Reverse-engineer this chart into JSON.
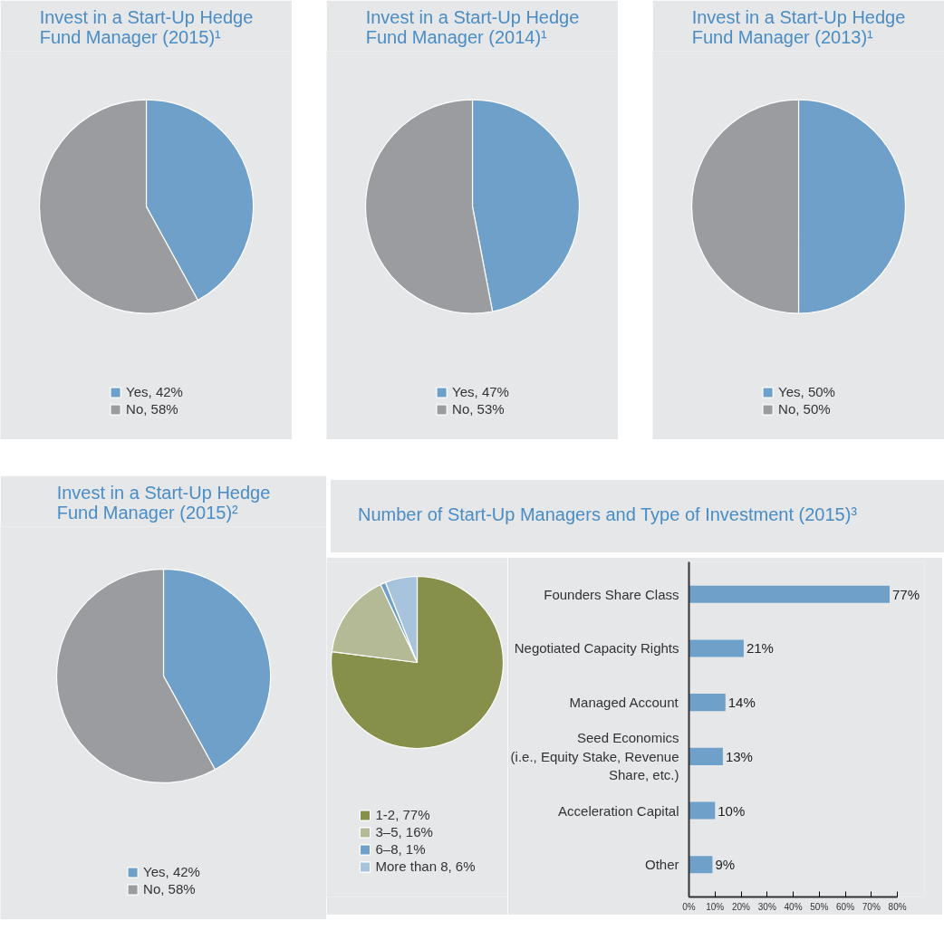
{
  "chart_data": [
    {
      "type": "pie",
      "title": "Invest in a Start-Up Hedge Fund Manager (2015)¹",
      "categories": [
        "Yes, 42%",
        "No, 58%"
      ],
      "values": [
        42,
        58
      ],
      "colors": [
        "#6fa0c9",
        "#9b9ca0"
      ],
      "legend": "bottom"
    },
    {
      "type": "pie",
      "title": "Invest in a Start-Up Hedge Fund Manager (2014)¹",
      "categories": [
        "Yes, 47%",
        "No, 53%"
      ],
      "values": [
        47,
        53
      ],
      "colors": [
        "#6fa0c9",
        "#9b9ca0"
      ],
      "legend": "bottom"
    },
    {
      "type": "pie",
      "title": "Invest in a Start-Up Hedge Fund Manager (2013)¹",
      "categories": [
        "Yes, 50%",
        "No, 50%"
      ],
      "values": [
        50,
        50
      ],
      "colors": [
        "#6fa0c9",
        "#9b9ca0"
      ],
      "legend": "bottom"
    },
    {
      "type": "pie",
      "title": "Invest in a Start-Up Hedge Fund Manager (2015)²",
      "categories": [
        "Yes, 42%",
        "No, 58%"
      ],
      "values": [
        42,
        58
      ],
      "colors": [
        "#6fa0c9",
        "#9b9ca0"
      ],
      "legend": "bottom"
    },
    {
      "type": "pie",
      "categories": [
        "1-2, 77%",
        "3–5, 16%",
        "6–8, 1%",
        "More than 8, 6%"
      ],
      "values": [
        77,
        16,
        1,
        6
      ],
      "colors": [
        "#87904a",
        "#b3ba95",
        "#6fa0c9",
        "#a7c4dc"
      ],
      "legend": "bottom"
    },
    {
      "type": "bar",
      "orientation": "horizontal",
      "title": "Number of Start-Up Managers and Type of Investment (2015)³",
      "categories": [
        "Founders Share Class",
        "Negotiated Capacity Rights",
        "Managed Account",
        "Seed Economics\n(i.e., Equity Stake, Revenue\nShare, etc.)",
        "Acceleration Capital",
        "Other"
      ],
      "values": [
        77,
        21,
        14,
        13,
        10,
        9
      ],
      "color": "#6fa0c9",
      "value_labels": [
        "77%",
        "21%",
        "14%",
        "13%",
        "10%",
        "9%"
      ],
      "xlim": [
        0,
        80
      ],
      "xticks": [
        {
          "value": 0,
          "label": "0%"
        },
        {
          "value": 10,
          "label": "10%"
        },
        {
          "value": 20,
          "label": "20%"
        },
        {
          "value": 30,
          "label": "30%"
        },
        {
          "value": 40,
          "label": "40%"
        },
        {
          "value": 50,
          "label": "50%"
        },
        {
          "value": 60,
          "label": "60%"
        },
        {
          "value": 70,
          "label": "70%"
        },
        {
          "value": 80,
          "label": "80%"
        }
      ]
    }
  ]
}
